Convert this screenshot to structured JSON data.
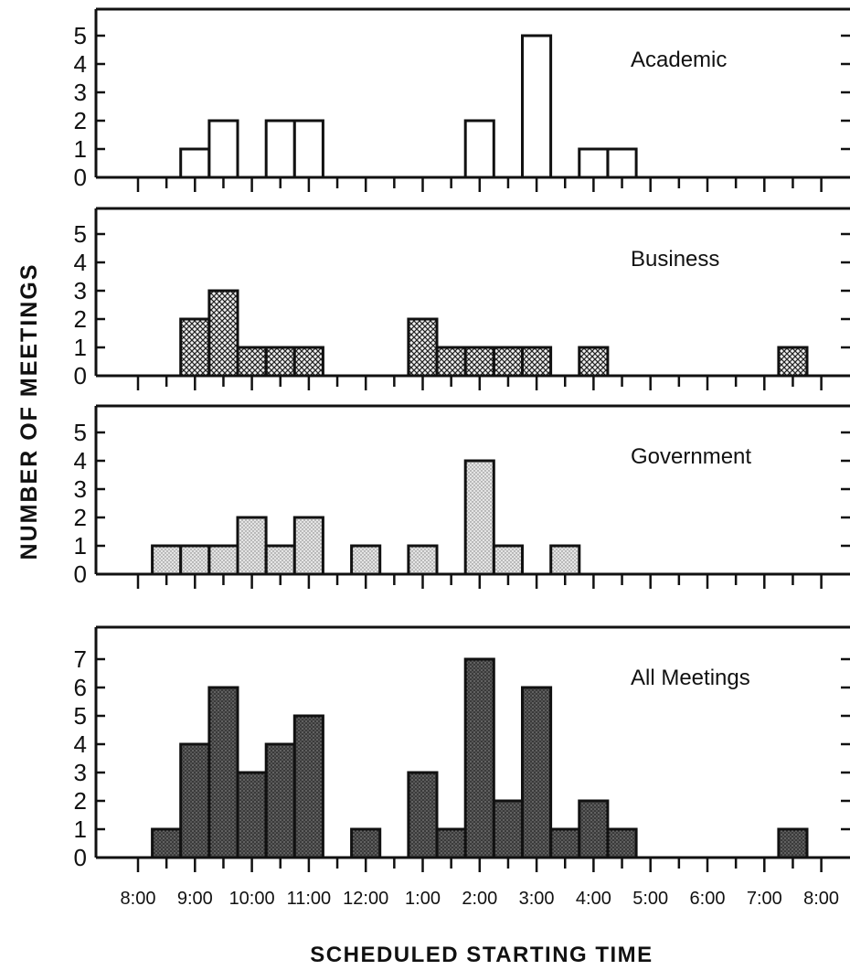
{
  "chart_data": [
    {
      "type": "bar",
      "title": "Academic",
      "y_max": 5,
      "bar_width_hours": 0.5,
      "x": [
        8.75,
        9.25,
        10.25,
        10.75,
        1.75,
        2.75,
        3.75,
        4.25
      ],
      "values": [
        1,
        2,
        2,
        2,
        2,
        5,
        1,
        1
      ],
      "fill": "#ffffff"
    },
    {
      "type": "bar",
      "title": "Business",
      "y_max": 5,
      "bar_width_hours": 0.5,
      "x": [
        8.75,
        9.25,
        9.75,
        10.25,
        10.75,
        12.75,
        1.25,
        1.75,
        2.25,
        2.75,
        3.75,
        7.25
      ],
      "values": [
        2,
        3,
        1,
        1,
        1,
        2,
        1,
        1,
        1,
        1,
        1,
        1
      ],
      "fill": "crosshatch"
    },
    {
      "type": "bar",
      "title": "Government",
      "y_max": 5,
      "bar_width_hours": 0.5,
      "x": [
        8.25,
        8.75,
        9.25,
        9.75,
        10.25,
        10.75,
        11.75,
        12.75,
        1.75,
        2.25,
        3.25
      ],
      "values": [
        1,
        1,
        1,
        2,
        1,
        2,
        1,
        1,
        4,
        1,
        1
      ],
      "fill": "light-stipple"
    },
    {
      "type": "bar",
      "title": "All Meetings",
      "y_max": 7,
      "bar_width_hours": 0.5,
      "x": [
        8.25,
        8.75,
        9.25,
        9.75,
        10.25,
        10.75,
        11.75,
        12.75,
        1.25,
        1.75,
        2.25,
        2.75,
        3.25,
        3.75,
        4.25,
        7.25
      ],
      "values": [
        1,
        4,
        6,
        3,
        4,
        5,
        1,
        3,
        1,
        7,
        2,
        6,
        1,
        2,
        1,
        1
      ],
      "fill": "dark-stipple"
    }
  ],
  "x_tick_labels": [
    "8:00",
    "9:00",
    "10:00",
    "11:00",
    "12:00",
    "1:00",
    "2:00",
    "3:00",
    "4:00",
    "5:00",
    "6:00",
    "7:00",
    "8:00"
  ],
  "xlabel": "SCHEDULED STARTING TIME",
  "ylabel": "NUMBER OF MEETINGS"
}
